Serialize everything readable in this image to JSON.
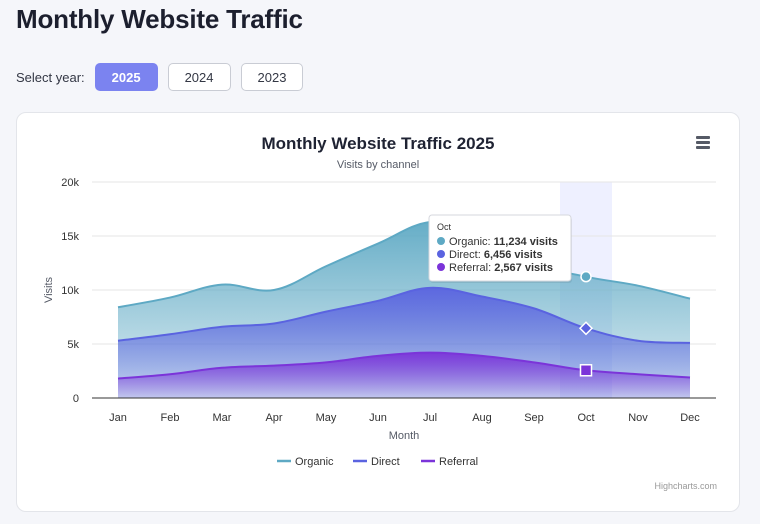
{
  "page": {
    "title": "Monthly Website Traffic",
    "year_selector_label": "Select year:",
    "years": [
      "2025",
      "2024",
      "2023"
    ],
    "active_year": "2025"
  },
  "chart_menu_icon": "hamburger-menu-icon",
  "credits": "Highcharts.com",
  "colors": {
    "organic": "#5ea9c4",
    "direct": "#5a63e0",
    "referral": "#7b34d9",
    "active_button": "#7b83f0",
    "highlight_band": "#eef0ff"
  },
  "chart_data": {
    "type": "area",
    "title": "Monthly Website Traffic 2025",
    "subtitle": "Visits by channel",
    "xlabel": "Month",
    "ylabel": "Visits",
    "categories": [
      "Jan",
      "Feb",
      "Mar",
      "Apr",
      "May",
      "Jun",
      "Jul",
      "Aug",
      "Sep",
      "Oct",
      "Nov",
      "Dec"
    ],
    "ylim": [
      0,
      20000
    ],
    "yticks": [
      0,
      5000,
      10000,
      15000,
      20000
    ],
    "ytick_labels": [
      "0",
      "5k",
      "10k",
      "15k",
      "20k"
    ],
    "grid": true,
    "legend_position": "bottom-center",
    "stacking": "none",
    "series": [
      {
        "name": "Organic",
        "values": [
          8400,
          9300,
          10500,
          10000,
          12200,
          14300,
          16300,
          15500,
          12500,
          11234,
          10400,
          9200
        ]
      },
      {
        "name": "Direct",
        "values": [
          5300,
          5900,
          6600,
          6900,
          8000,
          9000,
          10200,
          9400,
          8300,
          6456,
          5300,
          5100
        ]
      },
      {
        "name": "Referral",
        "values": [
          1800,
          2200,
          2800,
          3000,
          3300,
          3900,
          4200,
          3900,
          3300,
          2567,
          2200,
          1900
        ]
      }
    ],
    "hover": {
      "category_index": 9,
      "tooltip_header": "Oct",
      "rows": [
        {
          "series": "Organic",
          "label": "Organic:",
          "value": "11,234 visits"
        },
        {
          "series": "Direct",
          "label": "Direct:",
          "value": "6,456 visits"
        },
        {
          "series": "Referral",
          "label": "Referral:",
          "value": "2,567 visits"
        }
      ]
    }
  }
}
